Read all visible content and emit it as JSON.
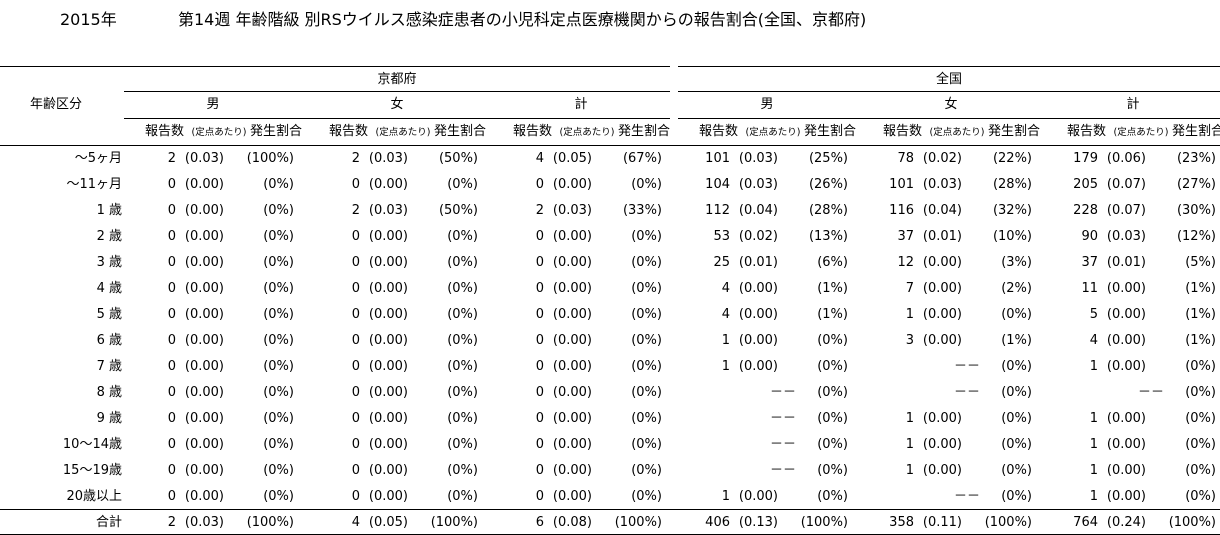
{
  "year": "2015年",
  "title": "第14週 年齢階級 別RSウイルス感染症患者の小児科定点医療機関からの報告割合(全国、京都府)",
  "row_header": "年齢区分",
  "regions": [
    "京都府",
    "全国"
  ],
  "sexes": [
    "男",
    "女",
    "計"
  ],
  "sub": {
    "count": "報告数",
    "per": "(定点あたり)",
    "ratio": "発生割合"
  },
  "rows": [
    {
      "label": "～5ヶ月",
      "cells": [
        [
          "2",
          "(0.03)",
          "(100%)"
        ],
        [
          "2",
          "(0.03)",
          "(50%)"
        ],
        [
          "4",
          "(0.05)",
          "(67%)"
        ],
        [
          "101",
          "(0.03)",
          "(25%)"
        ],
        [
          "78",
          "(0.02)",
          "(22%)"
        ],
        [
          "179",
          "(0.06)",
          "(23%)"
        ]
      ]
    },
    {
      "label": "～11ヶ月",
      "cells": [
        [
          "0",
          "(0.00)",
          "(0%)"
        ],
        [
          "0",
          "(0.00)",
          "(0%)"
        ],
        [
          "0",
          "(0.00)",
          "(0%)"
        ],
        [
          "104",
          "(0.03)",
          "(26%)"
        ],
        [
          "101",
          "(0.03)",
          "(28%)"
        ],
        [
          "205",
          "(0.07)",
          "(27%)"
        ]
      ]
    },
    {
      "label": "1 歳",
      "cells": [
        [
          "0",
          "(0.00)",
          "(0%)"
        ],
        [
          "2",
          "(0.03)",
          "(50%)"
        ],
        [
          "2",
          "(0.03)",
          "(33%)"
        ],
        [
          "112",
          "(0.04)",
          "(28%)"
        ],
        [
          "116",
          "(0.04)",
          "(32%)"
        ],
        [
          "228",
          "(0.07)",
          "(30%)"
        ]
      ]
    },
    {
      "label": "2 歳",
      "cells": [
        [
          "0",
          "(0.00)",
          "(0%)"
        ],
        [
          "0",
          "(0.00)",
          "(0%)"
        ],
        [
          "0",
          "(0.00)",
          "(0%)"
        ],
        [
          "53",
          "(0.02)",
          "(13%)"
        ],
        [
          "37",
          "(0.01)",
          "(10%)"
        ],
        [
          "90",
          "(0.03)",
          "(12%)"
        ]
      ]
    },
    {
      "label": "3 歳",
      "cells": [
        [
          "0",
          "(0.00)",
          "(0%)"
        ],
        [
          "0",
          "(0.00)",
          "(0%)"
        ],
        [
          "0",
          "(0.00)",
          "(0%)"
        ],
        [
          "25",
          "(0.01)",
          "(6%)"
        ],
        [
          "12",
          "(0.00)",
          "(3%)"
        ],
        [
          "37",
          "(0.01)",
          "(5%)"
        ]
      ]
    },
    {
      "label": "4 歳",
      "cells": [
        [
          "0",
          "(0.00)",
          "(0%)"
        ],
        [
          "0",
          "(0.00)",
          "(0%)"
        ],
        [
          "0",
          "(0.00)",
          "(0%)"
        ],
        [
          "4",
          "(0.00)",
          "(1%)"
        ],
        [
          "7",
          "(0.00)",
          "(2%)"
        ],
        [
          "11",
          "(0.00)",
          "(1%)"
        ]
      ]
    },
    {
      "label": "5 歳",
      "cells": [
        [
          "0",
          "(0.00)",
          "(0%)"
        ],
        [
          "0",
          "(0.00)",
          "(0%)"
        ],
        [
          "0",
          "(0.00)",
          "(0%)"
        ],
        [
          "4",
          "(0.00)",
          "(1%)"
        ],
        [
          "1",
          "(0.00)",
          "(0%)"
        ],
        [
          "5",
          "(0.00)",
          "(1%)"
        ]
      ]
    },
    {
      "label": "6 歳",
      "cells": [
        [
          "0",
          "(0.00)",
          "(0%)"
        ],
        [
          "0",
          "(0.00)",
          "(0%)"
        ],
        [
          "0",
          "(0.00)",
          "(0%)"
        ],
        [
          "1",
          "(0.00)",
          "(0%)"
        ],
        [
          "3",
          "(0.00)",
          "(1%)"
        ],
        [
          "4",
          "(0.00)",
          "(1%)"
        ]
      ]
    },
    {
      "label": "7 歳",
      "cells": [
        [
          "0",
          "(0.00)",
          "(0%)"
        ],
        [
          "0",
          "(0.00)",
          "(0%)"
        ],
        [
          "0",
          "(0.00)",
          "(0%)"
        ],
        [
          "1",
          "(0.00)",
          "(0%)"
        ],
        [
          "－－",
          "",
          "(0%)"
        ],
        [
          "1",
          "(0.00)",
          "(0%)"
        ]
      ]
    },
    {
      "label": "8 歳",
      "cells": [
        [
          "0",
          "(0.00)",
          "(0%)"
        ],
        [
          "0",
          "(0.00)",
          "(0%)"
        ],
        [
          "0",
          "(0.00)",
          "(0%)"
        ],
        [
          "－－",
          "",
          "(0%)"
        ],
        [
          "－－",
          "",
          "(0%)"
        ],
        [
          "－－",
          "",
          "(0%)"
        ]
      ]
    },
    {
      "label": "9 歳",
      "cells": [
        [
          "0",
          "(0.00)",
          "(0%)"
        ],
        [
          "0",
          "(0.00)",
          "(0%)"
        ],
        [
          "0",
          "(0.00)",
          "(0%)"
        ],
        [
          "－－",
          "",
          "(0%)"
        ],
        [
          "1",
          "(0.00)",
          "(0%)"
        ],
        [
          "1",
          "(0.00)",
          "(0%)"
        ]
      ]
    },
    {
      "label": "10～14歳",
      "cells": [
        [
          "0",
          "(0.00)",
          "(0%)"
        ],
        [
          "0",
          "(0.00)",
          "(0%)"
        ],
        [
          "0",
          "(0.00)",
          "(0%)"
        ],
        [
          "－－",
          "",
          "(0%)"
        ],
        [
          "1",
          "(0.00)",
          "(0%)"
        ],
        [
          "1",
          "(0.00)",
          "(0%)"
        ]
      ]
    },
    {
      "label": "15～19歳",
      "cells": [
        [
          "0",
          "(0.00)",
          "(0%)"
        ],
        [
          "0",
          "(0.00)",
          "(0%)"
        ],
        [
          "0",
          "(0.00)",
          "(0%)"
        ],
        [
          "－－",
          "",
          "(0%)"
        ],
        [
          "1",
          "(0.00)",
          "(0%)"
        ],
        [
          "1",
          "(0.00)",
          "(0%)"
        ]
      ]
    },
    {
      "label": "20歳以上",
      "cells": [
        [
          "0",
          "(0.00)",
          "(0%)"
        ],
        [
          "0",
          "(0.00)",
          "(0%)"
        ],
        [
          "0",
          "(0.00)",
          "(0%)"
        ],
        [
          "1",
          "(0.00)",
          "(0%)"
        ],
        [
          "－－",
          "",
          "(0%)"
        ],
        [
          "1",
          "(0.00)",
          "(0%)"
        ]
      ]
    }
  ],
  "total": {
    "label": "合計",
    "cells": [
      [
        "2",
        "(0.03)",
        "(100%)"
      ],
      [
        "4",
        "(0.05)",
        "(100%)"
      ],
      [
        "6",
        "(0.08)",
        "(100%)"
      ],
      [
        "406",
        "(0.13)",
        "(100%)"
      ],
      [
        "358",
        "(0.11)",
        "(100%)"
      ],
      [
        "764",
        "(0.24)",
        "(100%)"
      ]
    ]
  }
}
